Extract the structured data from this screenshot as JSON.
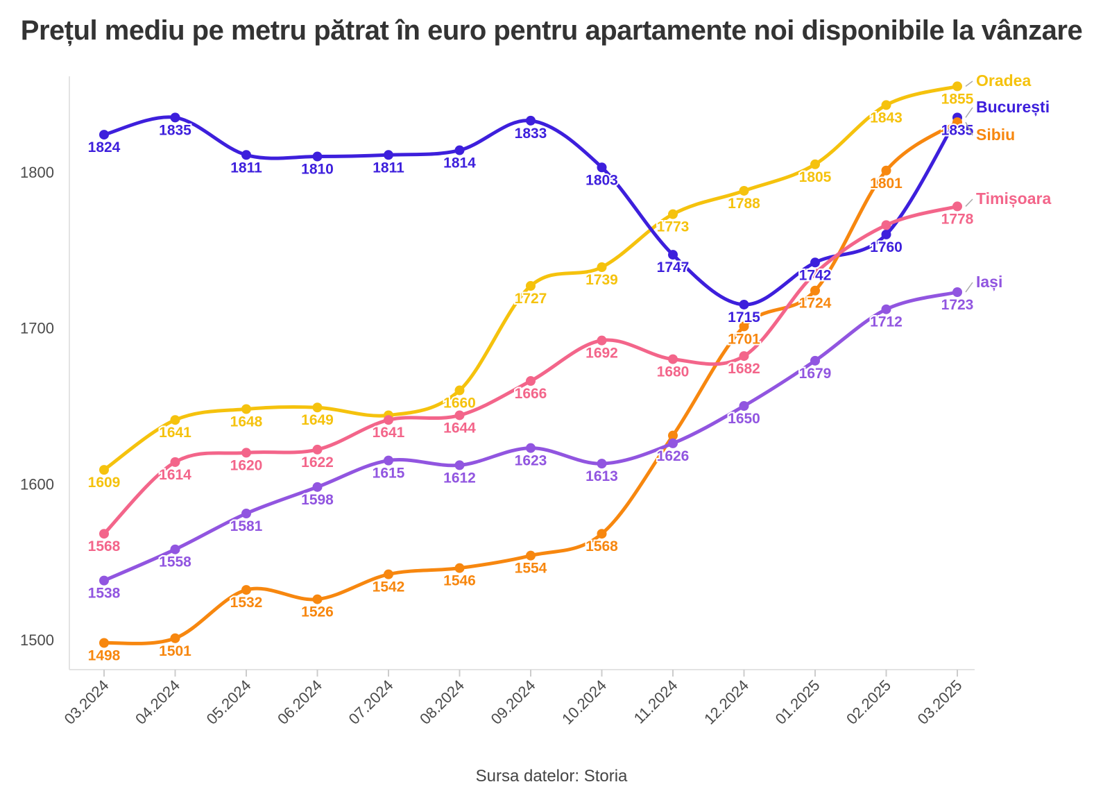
{
  "chart_data": {
    "type": "line",
    "title": "Prețul mediu pe metru pătrat în euro pentru apartamente noi disponibile la vânzare",
    "source": "Sursa datelor: Storia",
    "xlabel": "",
    "ylabel": "",
    "categories": [
      "03.2024",
      "04.2024",
      "05.2024",
      "06.2024",
      "07.2024",
      "08.2024",
      "09.2024",
      "10.2024",
      "11.2024",
      "12.2024",
      "01.2025",
      "02.2025",
      "03.2025"
    ],
    "y_ticks": [
      1500,
      1600,
      1700,
      1800
    ],
    "ylim": [
      1480,
      1860
    ],
    "grid": false,
    "legend": "end-of-line labels",
    "series": [
      {
        "name": "Oradea",
        "color": "#f5c20d",
        "values": [
          1609,
          1641,
          1648,
          1649,
          1644,
          1660,
          1727,
          1739,
          1773,
          1788,
          1805,
          1843,
          1855
        ],
        "labels": [
          "1609",
          "1641",
          "1648",
          "1649",
          "",
          "1660",
          "1727",
          "1739",
          "1773",
          "1788",
          "1805",
          "1843",
          "1855"
        ]
      },
      {
        "name": "București",
        "color": "#3d1fdc",
        "values": [
          1824,
          1835,
          1811,
          1810,
          1811,
          1814,
          1833,
          1803,
          1747,
          1715,
          1742,
          1760,
          1835
        ],
        "labels": [
          "1824",
          "1835",
          "1811",
          "1810",
          "1811",
          "1814",
          "1833",
          "1803",
          "1747",
          "1715",
          "1742",
          "1760",
          "1835"
        ]
      },
      {
        "name": "Sibiu",
        "color": "#f7870f",
        "values": [
          1498,
          1501,
          1532,
          1526,
          1542,
          1546,
          1554,
          1568,
          1631,
          1701,
          1724,
          1801,
          1832
        ],
        "labels": [
          "1498",
          "1501",
          "1532",
          "1526",
          "1542",
          "1546",
          "1554",
          "1568",
          "",
          "1701",
          "1724",
          "1801",
          ""
        ]
      },
      {
        "name": "Timișoara",
        "color": "#f3658a",
        "values": [
          1568,
          1614,
          1620,
          1622,
          1641,
          1644,
          1666,
          1692,
          1680,
          1682,
          1735,
          1766,
          1778
        ],
        "labels": [
          "1568",
          "1614",
          "1620",
          "1622",
          "1641",
          "1644",
          "1666",
          "1692",
          "1680",
          "1682",
          "",
          "",
          "1778"
        ]
      },
      {
        "name": "Iași",
        "color": "#9155e0",
        "values": [
          1538,
          1558,
          1581,
          1598,
          1615,
          1612,
          1623,
          1613,
          1626,
          1650,
          1679,
          1712,
          1723
        ],
        "labels": [
          "1538",
          "1558",
          "1581",
          "1598",
          "1615",
          "1612",
          "1623",
          "1613",
          "1626",
          "1650",
          "1679",
          "1712",
          "1723"
        ]
      }
    ]
  }
}
